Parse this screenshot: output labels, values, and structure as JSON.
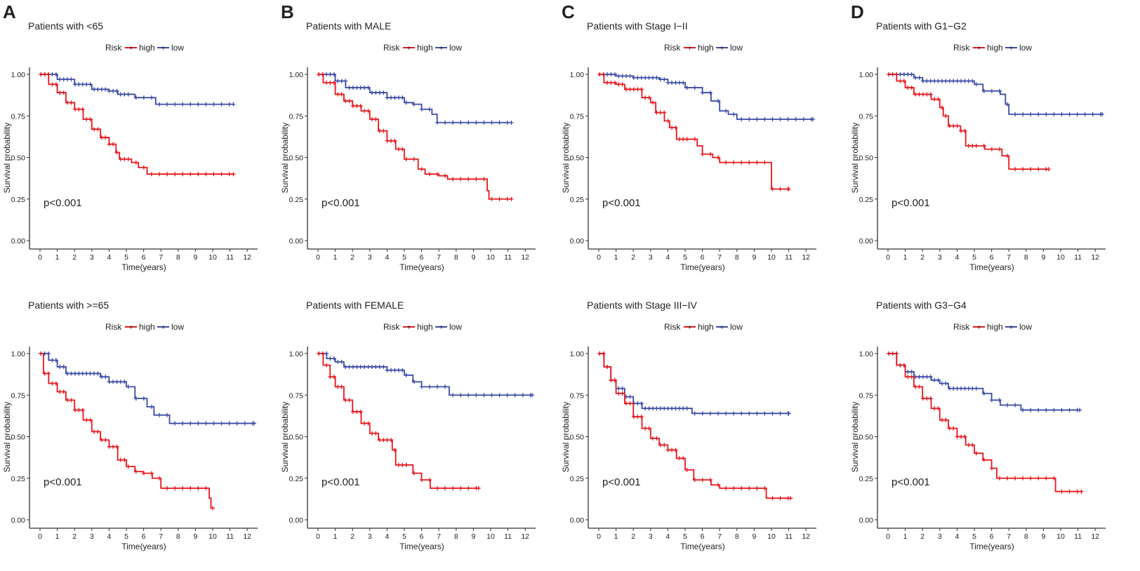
{
  "colors": {
    "high": "#e8161c",
    "low": "#3a4aa8",
    "axis": "#333333"
  },
  "legend": {
    "title": "Risk",
    "high": "high",
    "low": "low"
  },
  "chart_data": [
    {
      "type": "line",
      "panel": "A",
      "title": "Patients with <65",
      "xlabel": "Time(years)",
      "ylabel": "Survival probability",
      "xlim": [
        0,
        12
      ],
      "ylim": [
        0,
        1
      ],
      "xticks": [
        "0",
        "1",
        "2",
        "3",
        "4",
        "5",
        "6",
        "7",
        "8",
        "9",
        "10",
        "11",
        "12"
      ],
      "yticks": [
        "0.00",
        "0.25",
        "0.50",
        "0.75",
        "1.00"
      ],
      "pvalue": "p<0.001",
      "series": [
        {
          "name": "high",
          "end": 11.2,
          "steps": [
            [
              0,
              1
            ],
            [
              0.5,
              0.94
            ],
            [
              1,
              0.89
            ],
            [
              1.5,
              0.83
            ],
            [
              2,
              0.79
            ],
            [
              2.5,
              0.73
            ],
            [
              3,
              0.67
            ],
            [
              3.5,
              0.62
            ],
            [
              4,
              0.58
            ],
            [
              4.4,
              0.53
            ],
            [
              4.6,
              0.49
            ],
            [
              5.3,
              0.47
            ],
            [
              5.7,
              0.44
            ],
            [
              6.2,
              0.4
            ]
          ]
        },
        {
          "name": "low",
          "end": 11.2,
          "steps": [
            [
              0,
              1
            ],
            [
              1,
              0.97
            ],
            [
              2,
              0.94
            ],
            [
              3,
              0.91
            ],
            [
              4,
              0.9
            ],
            [
              4.5,
              0.88
            ],
            [
              5.5,
              0.86
            ],
            [
              6.7,
              0.82
            ]
          ]
        }
      ]
    },
    {
      "type": "line",
      "panel": "B",
      "title": "Patients with MALE",
      "xlabel": "Time(years)",
      "ylabel": "Survival probability",
      "xlim": [
        0,
        12
      ],
      "ylim": [
        0,
        1
      ],
      "xticks": [
        "0",
        "1",
        "2",
        "3",
        "4",
        "5",
        "6",
        "7",
        "8",
        "9",
        "10",
        "11",
        "12"
      ],
      "yticks": [
        "0.00",
        "0.25",
        "0.50",
        "0.75",
        "1.00"
      ],
      "pvalue": "p<0.001",
      "series": [
        {
          "name": "high",
          "end": 11.2,
          "steps": [
            [
              0,
              1
            ],
            [
              0.3,
              0.95
            ],
            [
              1,
              0.88
            ],
            [
              1.5,
              0.84
            ],
            [
              2,
              0.81
            ],
            [
              2.5,
              0.78
            ],
            [
              3,
              0.73
            ],
            [
              3.5,
              0.66
            ],
            [
              4,
              0.6
            ],
            [
              4.5,
              0.55
            ],
            [
              5,
              0.49
            ],
            [
              5.8,
              0.43
            ],
            [
              6.2,
              0.4
            ],
            [
              7,
              0.39
            ],
            [
              7.5,
              0.37
            ],
            [
              9.8,
              0.3
            ],
            [
              9.9,
              0.25
            ]
          ]
        },
        {
          "name": "low",
          "end": 11.2,
          "steps": [
            [
              0,
              1
            ],
            [
              1,
              0.96
            ],
            [
              1.6,
              0.92
            ],
            [
              3,
              0.89
            ],
            [
              4,
              0.86
            ],
            [
              5,
              0.83
            ],
            [
              5.5,
              0.82
            ],
            [
              6,
              0.79
            ],
            [
              6.6,
              0.76
            ],
            [
              6.9,
              0.71
            ]
          ]
        }
      ]
    },
    {
      "type": "line",
      "panel": "C",
      "title": "Patients with Stage I−II",
      "xlabel": "Time(years)",
      "ylabel": "Survival probability",
      "xlim": [
        0,
        12
      ],
      "ylim": [
        0,
        1
      ],
      "xticks": [
        "0",
        "1",
        "2",
        "3",
        "4",
        "5",
        "6",
        "7",
        "8",
        "9",
        "10",
        "11",
        "12"
      ],
      "yticks": [
        "0.00",
        "0.25",
        "0.50",
        "0.75",
        "1.00"
      ],
      "pvalue": "p<0.001",
      "series": [
        {
          "name": "high",
          "end": 11,
          "steps": [
            [
              0,
              1
            ],
            [
              0.3,
              0.95
            ],
            [
              1,
              0.94
            ],
            [
              1.5,
              0.91
            ],
            [
              2.5,
              0.86
            ],
            [
              3,
              0.83
            ],
            [
              3.3,
              0.77
            ],
            [
              3.8,
              0.72
            ],
            [
              4.1,
              0.68
            ],
            [
              4.5,
              0.61
            ],
            [
              5.7,
              0.57
            ],
            [
              6,
              0.52
            ],
            [
              6.6,
              0.5
            ],
            [
              7,
              0.47
            ],
            [
              10,
              0.31
            ]
          ]
        },
        {
          "name": "low",
          "end": 12.4,
          "steps": [
            [
              0,
              1
            ],
            [
              1,
              0.99
            ],
            [
              2,
              0.98
            ],
            [
              3.5,
              0.97
            ],
            [
              4,
              0.95
            ],
            [
              5,
              0.92
            ],
            [
              6,
              0.89
            ],
            [
              6.5,
              0.84
            ],
            [
              7,
              0.78
            ],
            [
              7.5,
              0.76
            ],
            [
              8,
              0.73
            ]
          ]
        }
      ]
    },
    {
      "type": "line",
      "panel": "D",
      "title": "Patients with G1−G2",
      "xlabel": "Time(years)",
      "ylabel": "Survival probability",
      "xlim": [
        0,
        12
      ],
      "ylim": [
        0,
        1
      ],
      "xticks": [
        "0",
        "1",
        "2",
        "3",
        "4",
        "5",
        "6",
        "7",
        "8",
        "9",
        "10",
        "11",
        "12"
      ],
      "yticks": [
        "0.00",
        "0.25",
        "0.50",
        "0.75",
        "1.00"
      ],
      "pvalue": "p<0.001",
      "series": [
        {
          "name": "high",
          "end": 9.3,
          "steps": [
            [
              0,
              1
            ],
            [
              0.5,
              0.96
            ],
            [
              1,
              0.92
            ],
            [
              1.5,
              0.88
            ],
            [
              2.5,
              0.85
            ],
            [
              3,
              0.8
            ],
            [
              3.2,
              0.75
            ],
            [
              3.5,
              0.69
            ],
            [
              4.2,
              0.66
            ],
            [
              4.5,
              0.57
            ],
            [
              5.6,
              0.55
            ],
            [
              6.6,
              0.51
            ],
            [
              7,
              0.43
            ]
          ]
        },
        {
          "name": "low",
          "end": 12.4,
          "steps": [
            [
              0,
              1
            ],
            [
              1.5,
              0.98
            ],
            [
              2,
              0.96
            ],
            [
              5,
              0.94
            ],
            [
              5.5,
              0.9
            ],
            [
              6.5,
              0.88
            ],
            [
              6.8,
              0.82
            ],
            [
              7,
              0.76
            ]
          ]
        }
      ]
    },
    {
      "type": "line",
      "panel": "",
      "title": "Patients with >=65",
      "xlabel": "Time(years)",
      "ylabel": "Survival probability",
      "xlim": [
        0,
        12
      ],
      "ylim": [
        0,
        1
      ],
      "xticks": [
        "0",
        "1",
        "2",
        "3",
        "4",
        "5",
        "6",
        "7",
        "8",
        "9",
        "10",
        "11",
        "12"
      ],
      "yticks": [
        "0.00",
        "0.25",
        "0.50",
        "0.75",
        "1.00"
      ],
      "pvalue": "p<0.001",
      "series": [
        {
          "name": "high",
          "end": 10,
          "steps": [
            [
              0,
              1
            ],
            [
              0.2,
              0.88
            ],
            [
              0.5,
              0.82
            ],
            [
              1,
              0.77
            ],
            [
              1.5,
              0.72
            ],
            [
              2,
              0.66
            ],
            [
              2.5,
              0.6
            ],
            [
              3,
              0.53
            ],
            [
              3.5,
              0.48
            ],
            [
              4,
              0.44
            ],
            [
              4.5,
              0.36
            ],
            [
              5,
              0.32
            ],
            [
              5.5,
              0.29
            ],
            [
              6,
              0.28
            ],
            [
              6.5,
              0.25
            ],
            [
              7,
              0.19
            ],
            [
              9.8,
              0.13
            ],
            [
              9.9,
              0.07
            ]
          ]
        },
        {
          "name": "low",
          "end": 12.4,
          "steps": [
            [
              0,
              1
            ],
            [
              0.5,
              0.96
            ],
            [
              1,
              0.92
            ],
            [
              1.5,
              0.88
            ],
            [
              3.5,
              0.86
            ],
            [
              4,
              0.83
            ],
            [
              5,
              0.8
            ],
            [
              5.5,
              0.73
            ],
            [
              6.2,
              0.68
            ],
            [
              6.6,
              0.63
            ],
            [
              7.5,
              0.58
            ]
          ]
        }
      ]
    },
    {
      "type": "line",
      "panel": "",
      "title": "Patients with FEMALE",
      "xlabel": "Time(years)",
      "ylabel": "Survival probability",
      "xlim": [
        0,
        12
      ],
      "ylim": [
        0,
        1
      ],
      "xticks": [
        "0",
        "1",
        "2",
        "3",
        "4",
        "5",
        "6",
        "7",
        "8",
        "9",
        "10",
        "11",
        "12"
      ],
      "yticks": [
        "0.00",
        "0.25",
        "0.50",
        "0.75",
        "1.00"
      ],
      "pvalue": "p<0.001",
      "series": [
        {
          "name": "high",
          "end": 9.3,
          "steps": [
            [
              0,
              1
            ],
            [
              0.3,
              0.93
            ],
            [
              0.7,
              0.86
            ],
            [
              1,
              0.8
            ],
            [
              1.5,
              0.72
            ],
            [
              2,
              0.65
            ],
            [
              2.5,
              0.58
            ],
            [
              3,
              0.52
            ],
            [
              3.5,
              0.48
            ],
            [
              4.3,
              0.42
            ],
            [
              4.5,
              0.33
            ],
            [
              5.5,
              0.28
            ],
            [
              6,
              0.24
            ],
            [
              6.5,
              0.19
            ]
          ]
        },
        {
          "name": "low",
          "end": 12.4,
          "steps": [
            [
              0,
              1
            ],
            [
              0.5,
              0.97
            ],
            [
              1,
              0.95
            ],
            [
              1.5,
              0.92
            ],
            [
              4,
              0.9
            ],
            [
              5,
              0.87
            ],
            [
              5.5,
              0.83
            ],
            [
              6,
              0.8
            ],
            [
              7.6,
              0.75
            ]
          ]
        }
      ]
    },
    {
      "type": "line",
      "panel": "",
      "title": "Patients with Stage III−IV",
      "xlabel": "Time(years)",
      "ylabel": "Survival probability",
      "xlim": [
        0,
        12
      ],
      "ylim": [
        0,
        1
      ],
      "xticks": [
        "0",
        "1",
        "2",
        "3",
        "4",
        "5",
        "6",
        "7",
        "8",
        "9",
        "10",
        "11",
        "12"
      ],
      "yticks": [
        "0.00",
        "0.25",
        "0.50",
        "0.75",
        "1.00"
      ],
      "pvalue": "p<0.001",
      "series": [
        {
          "name": "high",
          "end": 11.1,
          "steps": [
            [
              0,
              1
            ],
            [
              0.3,
              0.92
            ],
            [
              0.7,
              0.84
            ],
            [
              1,
              0.76
            ],
            [
              1.5,
              0.7
            ],
            [
              2,
              0.62
            ],
            [
              2.5,
              0.55
            ],
            [
              3,
              0.49
            ],
            [
              3.5,
              0.45
            ],
            [
              4,
              0.42
            ],
            [
              4.5,
              0.37
            ],
            [
              5,
              0.3
            ],
            [
              5.5,
              0.24
            ],
            [
              6.5,
              0.21
            ],
            [
              7,
              0.19
            ],
            [
              9.7,
              0.13
            ]
          ]
        },
        {
          "name": "low",
          "end": 11,
          "steps": [
            [
              0,
              1
            ],
            [
              0.3,
              0.92
            ],
            [
              0.7,
              0.84
            ],
            [
              1,
              0.79
            ],
            [
              1.5,
              0.74
            ],
            [
              2,
              0.7
            ],
            [
              2.5,
              0.67
            ],
            [
              5.4,
              0.64
            ]
          ]
        }
      ]
    },
    {
      "type": "line",
      "panel": "",
      "title": "Patients with G3−G4",
      "xlabel": "Time(years)",
      "ylabel": "Survival probability",
      "xlim": [
        0,
        12
      ],
      "ylim": [
        0,
        1
      ],
      "xticks": [
        "0",
        "1",
        "2",
        "3",
        "4",
        "5",
        "6",
        "7",
        "8",
        "9",
        "10",
        "11",
        "12"
      ],
      "yticks": [
        "0.00",
        "0.25",
        "0.50",
        "0.75",
        "1.00"
      ],
      "pvalue": "p<0.001",
      "series": [
        {
          "name": "high",
          "end": 11.2,
          "steps": [
            [
              0,
              1
            ],
            [
              0.5,
              0.93
            ],
            [
              1,
              0.86
            ],
            [
              1.5,
              0.8
            ],
            [
              2,
              0.73
            ],
            [
              2.5,
              0.67
            ],
            [
              3,
              0.6
            ],
            [
              3.5,
              0.55
            ],
            [
              4,
              0.5
            ],
            [
              4.5,
              0.45
            ],
            [
              5,
              0.4
            ],
            [
              5.5,
              0.36
            ],
            [
              6,
              0.31
            ],
            [
              6.3,
              0.25
            ],
            [
              9.7,
              0.17
            ]
          ]
        },
        {
          "name": "low",
          "end": 11.1,
          "steps": [
            [
              0,
              1
            ],
            [
              0.5,
              0.93
            ],
            [
              1,
              0.89
            ],
            [
              1.5,
              0.86
            ],
            [
              2.5,
              0.84
            ],
            [
              3,
              0.82
            ],
            [
              3.5,
              0.79
            ],
            [
              5.5,
              0.76
            ],
            [
              6,
              0.72
            ],
            [
              6.5,
              0.69
            ],
            [
              7.7,
              0.66
            ]
          ]
        }
      ]
    }
  ]
}
